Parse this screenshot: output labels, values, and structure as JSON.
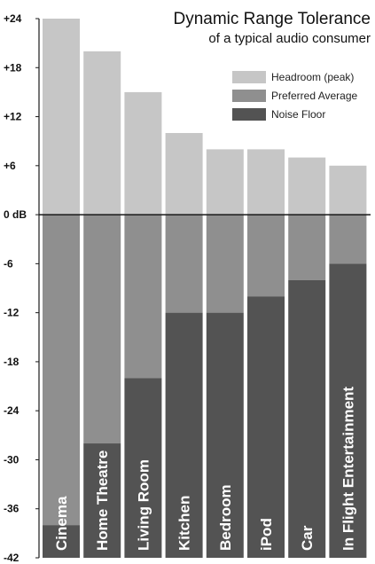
{
  "chart_data": {
    "type": "bar",
    "title": "Dynamic Range Tolerance",
    "subtitle": "of a typical audio consumer",
    "xlabel": "",
    "ylabel": "",
    "ylim": [
      -42,
      24
    ],
    "yticks": [
      "+24",
      "+18",
      "+12",
      "+6",
      "0 dB",
      "-6",
      "-12",
      "-18",
      "-24",
      "-30",
      "-36",
      "-42"
    ],
    "ytick_values": [
      24,
      18,
      12,
      6,
      0,
      -6,
      -12,
      -18,
      -24,
      -30,
      -36,
      -42
    ],
    "categories": [
      "Cinema",
      "Home Theatre",
      "Living Room",
      "Kitchen",
      "Bedroom",
      "iPod",
      "Car",
      "In Flight Entertainment"
    ],
    "series": [
      {
        "name": "Headroom (peak)",
        "values": [
          24,
          20,
          15,
          10,
          8,
          8,
          7,
          6
        ],
        "color": "#c6c6c6"
      },
      {
        "name": "Preferred Average",
        "values": [
          0,
          0,
          0,
          0,
          0,
          0,
          0,
          0
        ],
        "color": "#8f8f8f"
      },
      {
        "name": "Noise Floor",
        "values": [
          -38,
          -28,
          -20,
          -12,
          -12,
          -10,
          -8,
          -6
        ],
        "color": "#535353"
      }
    ],
    "legend_position": "top-right",
    "grid": false
  }
}
